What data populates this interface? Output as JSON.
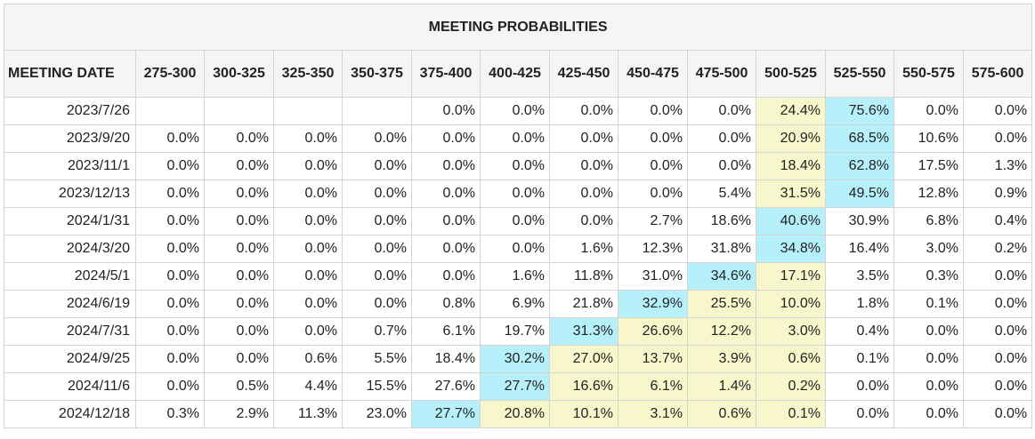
{
  "title": "MEETING PROBABILITIES",
  "columns": [
    "MEETING DATE",
    "275-300",
    "300-325",
    "325-350",
    "350-375",
    "375-400",
    "400-425",
    "425-450",
    "450-475",
    "475-500",
    "500-525",
    "525-550",
    "550-575",
    "575-600"
  ],
  "colors": {
    "max": "#b6f0fb",
    "current": "#f8f7cc"
  },
  "rows": [
    {
      "date": "2023/7/26",
      "cells": [
        "",
        "",
        "",
        "",
        "0.0%",
        "0.0%",
        "0.0%",
        "0.0%",
        "0.0%",
        "24.4%",
        "75.6%",
        "0.0%",
        "0.0%"
      ],
      "yellow": 9,
      "blue": 10
    },
    {
      "date": "2023/9/20",
      "cells": [
        "0.0%",
        "0.0%",
        "0.0%",
        "0.0%",
        "0.0%",
        "0.0%",
        "0.0%",
        "0.0%",
        "0.0%",
        "20.9%",
        "68.5%",
        "10.6%",
        "0.0%"
      ],
      "yellow": 9,
      "blue": 10
    },
    {
      "date": "2023/11/1",
      "cells": [
        "0.0%",
        "0.0%",
        "0.0%",
        "0.0%",
        "0.0%",
        "0.0%",
        "0.0%",
        "0.0%",
        "0.0%",
        "18.4%",
        "62.8%",
        "17.5%",
        "1.3%"
      ],
      "yellow": 9,
      "blue": 10
    },
    {
      "date": "2023/12/13",
      "cells": [
        "0.0%",
        "0.0%",
        "0.0%",
        "0.0%",
        "0.0%",
        "0.0%",
        "0.0%",
        "0.0%",
        "5.4%",
        "31.5%",
        "49.5%",
        "12.8%",
        "0.9%"
      ],
      "yellow": 9,
      "blue": 10
    },
    {
      "date": "2024/1/31",
      "cells": [
        "0.0%",
        "0.0%",
        "0.0%",
        "0.0%",
        "0.0%",
        "0.0%",
        "0.0%",
        "2.7%",
        "18.6%",
        "40.6%",
        "30.9%",
        "6.8%",
        "0.4%"
      ],
      "yellow": 9,
      "blue": 9
    },
    {
      "date": "2024/3/20",
      "cells": [
        "0.0%",
        "0.0%",
        "0.0%",
        "0.0%",
        "0.0%",
        "0.0%",
        "1.6%",
        "12.3%",
        "31.8%",
        "34.8%",
        "16.4%",
        "3.0%",
        "0.2%"
      ],
      "yellow": 9,
      "blue": 9
    },
    {
      "date": "2024/5/1",
      "cells": [
        "0.0%",
        "0.0%",
        "0.0%",
        "0.0%",
        "0.0%",
        "1.6%",
        "11.8%",
        "31.0%",
        "34.6%",
        "17.1%",
        "3.5%",
        "0.3%",
        "0.0%"
      ],
      "yellow": 9,
      "blue": 8
    },
    {
      "date": "2024/6/19",
      "cells": [
        "0.0%",
        "0.0%",
        "0.0%",
        "0.0%",
        "0.8%",
        "6.9%",
        "21.8%",
        "32.9%",
        "25.5%",
        "10.0%",
        "1.8%",
        "0.1%",
        "0.0%"
      ],
      "yellow": [
        8,
        9
      ],
      "blue": 7
    },
    {
      "date": "2024/7/31",
      "cells": [
        "0.0%",
        "0.0%",
        "0.0%",
        "0.7%",
        "6.1%",
        "19.7%",
        "31.3%",
        "26.6%",
        "12.2%",
        "3.0%",
        "0.4%",
        "0.0%",
        "0.0%"
      ],
      "yellow": [
        7,
        8,
        9
      ],
      "blue": 6
    },
    {
      "date": "2024/9/25",
      "cells": [
        "0.0%",
        "0.0%",
        "0.6%",
        "5.5%",
        "18.4%",
        "30.2%",
        "27.0%",
        "13.7%",
        "3.9%",
        "0.6%",
        "0.1%",
        "0.0%",
        "0.0%"
      ],
      "yellow": [
        6,
        7,
        8,
        9
      ],
      "blue": 5
    },
    {
      "date": "2024/11/6",
      "cells": [
        "0.0%",
        "0.5%",
        "4.4%",
        "15.5%",
        "27.6%",
        "27.7%",
        "16.6%",
        "6.1%",
        "1.4%",
        "0.2%",
        "0.0%",
        "0.0%",
        "0.0%"
      ],
      "yellow": [
        6,
        7,
        8,
        9
      ],
      "blue": 5
    },
    {
      "date": "2024/12/18",
      "cells": [
        "0.3%",
        "2.9%",
        "11.3%",
        "23.0%",
        "27.7%",
        "20.8%",
        "10.1%",
        "3.1%",
        "0.6%",
        "0.1%",
        "0.0%",
        "0.0%",
        "0.0%"
      ],
      "yellow": [
        5,
        6,
        7,
        8,
        9
      ],
      "blue": 4
    }
  ]
}
